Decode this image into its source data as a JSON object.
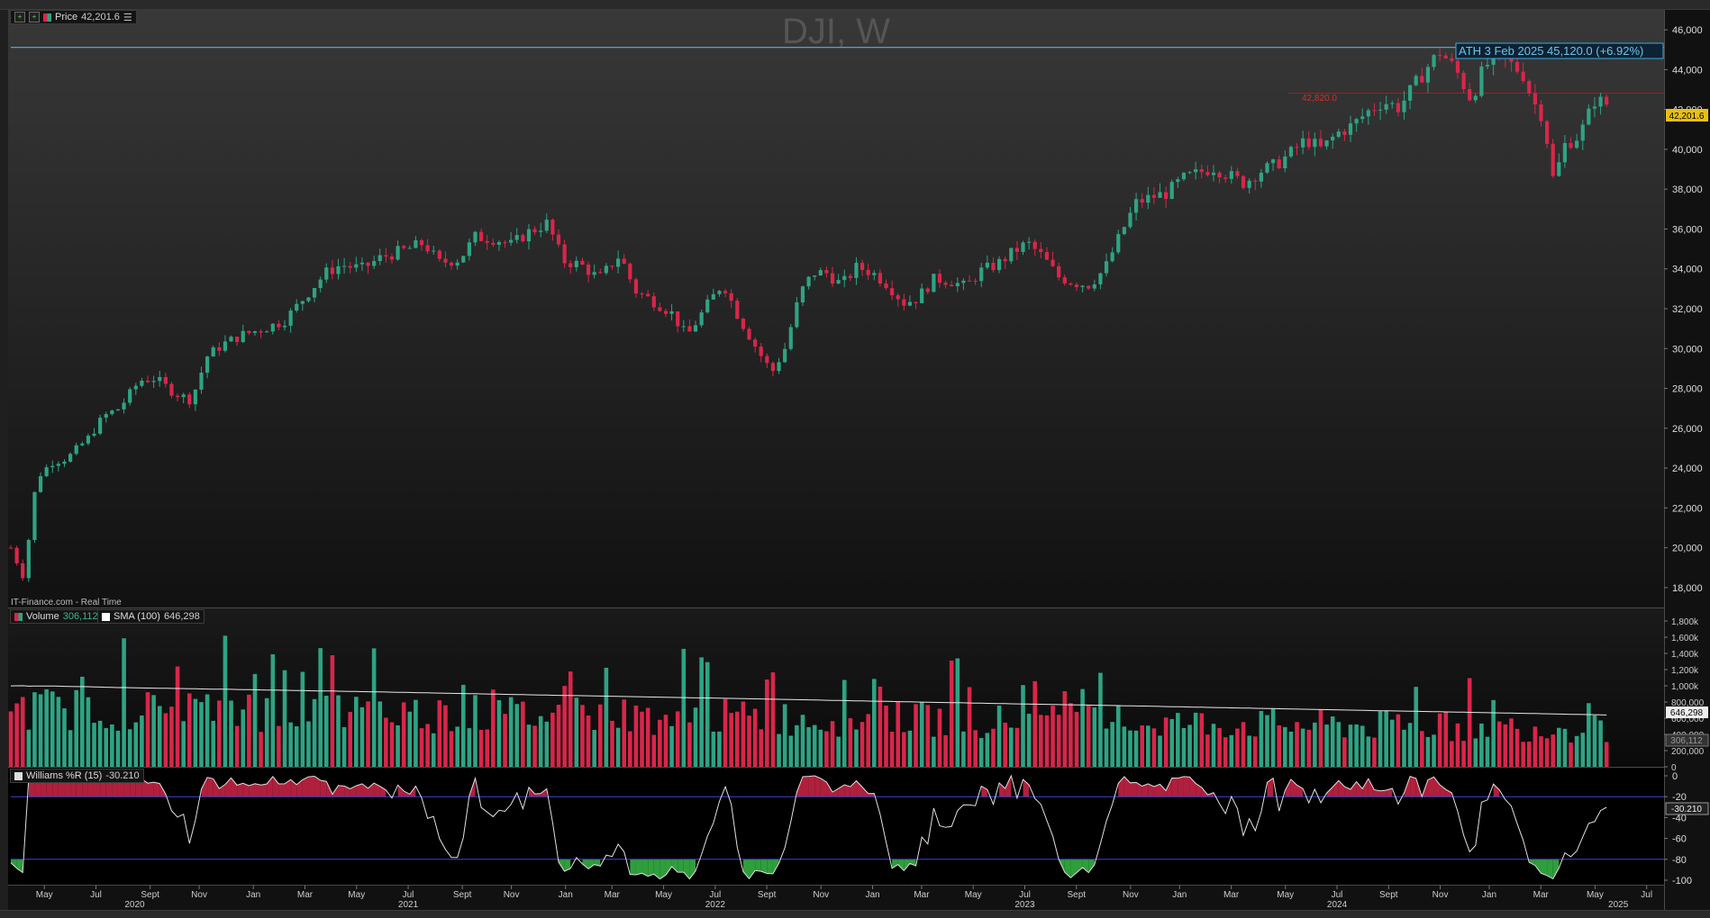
{
  "window": {
    "symbol_title": "DJI, W",
    "source_note": "IT-Finance.com - Real Time"
  },
  "price_panel": {
    "legend_label": "Price",
    "legend_value": "42,201.6",
    "last_price_tag": "42,201.6",
    "ath_label": "ATH 3 Feb 2025 45,120.0 (+6.92%)",
    "ath_value": 45120,
    "hline_label": "42,820.0",
    "hline_value": 42820,
    "axis_ticks": [
      "18,000",
      "20,000",
      "22,000",
      "24,000",
      "26,000",
      "28,000",
      "30,000",
      "32,000",
      "34,000",
      "36,000",
      "38,000",
      "40,000",
      "42,000",
      "44,000",
      "46,000"
    ],
    "colors": {
      "up": "#2ea383",
      "down": "#d8264a",
      "ath_line": "#3fa9e0",
      "hline": "#b01a1a",
      "tag": "#e8c010"
    }
  },
  "volume_panel": {
    "legend_label": "Volume",
    "legend_value": "306,112",
    "sma_label": "SMA (100)",
    "sma_value": "646,298",
    "sma_tag": "646,298",
    "last_tag": "306,112",
    "axis_ticks": [
      "0",
      "200,000",
      "400,000",
      "600,000",
      "800,000",
      "1,000k",
      "1,200k",
      "1,400k",
      "1,600k",
      "1,800k"
    ]
  },
  "williams_panel": {
    "legend_label": "Williams %R (15)",
    "legend_value": "-30.210",
    "last_tag": "-30.210",
    "axis_ticks": [
      "0",
      "-20",
      "-40",
      "-60",
      "-80",
      "-100"
    ],
    "upper_level": -20,
    "lower_level": -80
  },
  "time_axis": {
    "months": [
      {
        "t": 1.3,
        "label": "May"
      },
      {
        "t": 3.3,
        "label": "Jul"
      },
      {
        "t": 5.4,
        "label": "Sept"
      },
      {
        "t": 7.3,
        "label": "Nov"
      },
      {
        "t": 9.4,
        "label": "Jan"
      },
      {
        "t": 11.4,
        "label": "Mar"
      },
      {
        "t": 13.4,
        "label": "May"
      },
      {
        "t": 15.4,
        "label": "Jul"
      },
      {
        "t": 17.5,
        "label": "Sept"
      },
      {
        "t": 19.4,
        "label": "Nov"
      },
      {
        "t": 21.5,
        "label": "Jan"
      },
      {
        "t": 23.3,
        "label": "Mar"
      },
      {
        "t": 25.3,
        "label": "May"
      },
      {
        "t": 27.3,
        "label": "Jul"
      },
      {
        "t": 29.3,
        "label": "Sept"
      },
      {
        "t": 31.4,
        "label": "Nov"
      },
      {
        "t": 33.4,
        "label": "Jan"
      },
      {
        "t": 35.3,
        "label": "Mar"
      },
      {
        "t": 37.3,
        "label": "May"
      },
      {
        "t": 39.3,
        "label": "Jul"
      },
      {
        "t": 41.3,
        "label": "Sept"
      },
      {
        "t": 43.4,
        "label": "Nov"
      },
      {
        "t": 45.3,
        "label": "Jan"
      },
      {
        "t": 47.3,
        "label": "Mar"
      },
      {
        "t": 49.4,
        "label": "May"
      },
      {
        "t": 51.4,
        "label": "Jul"
      },
      {
        "t": 53.4,
        "label": "Sept"
      },
      {
        "t": 55.4,
        "label": "Nov"
      },
      {
        "t": 57.3,
        "label": "Jan"
      },
      {
        "t": 59.3,
        "label": "Mar"
      },
      {
        "t": 61.4,
        "label": "May"
      },
      {
        "t": 63.4,
        "label": "Jul"
      }
    ],
    "years": [
      {
        "t": 4.8,
        "label": "2020"
      },
      {
        "t": 15.4,
        "label": "2021"
      },
      {
        "t": 27.3,
        "label": "2022"
      },
      {
        "t": 39.3,
        "label": "2023"
      },
      {
        "t": 51.4,
        "label": "2024"
      },
      {
        "t": 62.3,
        "label": "2025"
      }
    ]
  },
  "chart_data": {
    "type": "candlestick",
    "title": "DJI, W",
    "x_unit": "months since March 2020",
    "ylim_price": [
      17000,
      47000
    ],
    "ylim_volume": [
      0,
      1800000
    ],
    "ylim_williams": [
      -100,
      0
    ],
    "price_anchors": [
      [
        0.0,
        20000
      ],
      [
        0.5,
        18500
      ],
      [
        1.0,
        23500
      ],
      [
        1.6,
        24300
      ],
      [
        2.2,
        24500
      ],
      [
        3.0,
        25500
      ],
      [
        3.6,
        26600
      ],
      [
        4.2,
        27000
      ],
      [
        5.0,
        28400
      ],
      [
        5.6,
        28500
      ],
      [
        6.3,
        27800
      ],
      [
        7.0,
        27400
      ],
      [
        7.6,
        29600
      ],
      [
        8.2,
        30200
      ],
      [
        9.0,
        30700
      ],
      [
        9.8,
        31000
      ],
      [
        10.6,
        31400
      ],
      [
        11.4,
        32600
      ],
      [
        12.2,
        33800
      ],
      [
        12.8,
        34200
      ],
      [
        13.6,
        34000
      ],
      [
        14.4,
        34600
      ],
      [
        15.4,
        35000
      ],
      [
        16.0,
        35300
      ],
      [
        16.6,
        34300
      ],
      [
        17.4,
        34500
      ],
      [
        18.0,
        35600
      ],
      [
        18.8,
        35500
      ],
      [
        19.4,
        35200
      ],
      [
        20.0,
        35800
      ],
      [
        20.8,
        36300
      ],
      [
        21.4,
        34400
      ],
      [
        22.1,
        34200
      ],
      [
        22.8,
        33500
      ],
      [
        23.6,
        34700
      ],
      [
        24.2,
        32900
      ],
      [
        25.0,
        32300
      ],
      [
        25.6,
        31800
      ],
      [
        26.2,
        30600
      ],
      [
        27.0,
        32200
      ],
      [
        27.6,
        33300
      ],
      [
        28.2,
        31600
      ],
      [
        29.0,
        29800
      ],
      [
        29.5,
        28800
      ],
      [
        30.0,
        30000
      ],
      [
        30.6,
        32800
      ],
      [
        31.1,
        33800
      ],
      [
        31.6,
        33800
      ],
      [
        32.2,
        33200
      ],
      [
        32.8,
        34100
      ],
      [
        33.4,
        33800
      ],
      [
        34.0,
        33200
      ],
      [
        34.6,
        32300
      ],
      [
        35.1,
        32500
      ],
      [
        35.8,
        33500
      ],
      [
        36.4,
        33400
      ],
      [
        37.0,
        33100
      ],
      [
        37.6,
        33900
      ],
      [
        38.2,
        34200
      ],
      [
        38.8,
        34800
      ],
      [
        39.4,
        35300
      ],
      [
        40.0,
        34600
      ],
      [
        40.6,
        33600
      ],
      [
        41.2,
        33300
      ],
      [
        41.8,
        33200
      ],
      [
        42.4,
        34000
      ],
      [
        43.0,
        35700
      ],
      [
        43.6,
        37300
      ],
      [
        44.2,
        37600
      ],
      [
        44.8,
        37800
      ],
      [
        45.4,
        38500
      ],
      [
        46.0,
        38800
      ],
      [
        46.6,
        39100
      ],
      [
        47.2,
        38700
      ],
      [
        47.8,
        38300
      ],
      [
        48.4,
        38900
      ],
      [
        49.0,
        39200
      ],
      [
        49.6,
        39800
      ],
      [
        50.2,
        40500
      ],
      [
        50.8,
        40000
      ],
      [
        51.4,
        40800
      ],
      [
        52.0,
        41200
      ],
      [
        52.6,
        41900
      ],
      [
        53.2,
        42400
      ],
      [
        53.8,
        42100
      ],
      [
        54.4,
        43200
      ],
      [
        55.0,
        44300
      ],
      [
        55.4,
        44900
      ],
      [
        56.0,
        44000
      ],
      [
        56.6,
        42500
      ],
      [
        57.0,
        43800
      ],
      [
        57.4,
        44600
      ],
      [
        58.0,
        44400
      ],
      [
        58.6,
        43800
      ],
      [
        59.0,
        42400
      ],
      [
        59.4,
        41600
      ],
      [
        59.8,
        38300
      ],
      [
        60.2,
        40200
      ],
      [
        60.8,
        40700
      ],
      [
        61.4,
        42500
      ],
      [
        62.0,
        42200
      ]
    ],
    "t_min": 0.0,
    "t_max": 63.9,
    "last_bar_t": 62.0
  }
}
